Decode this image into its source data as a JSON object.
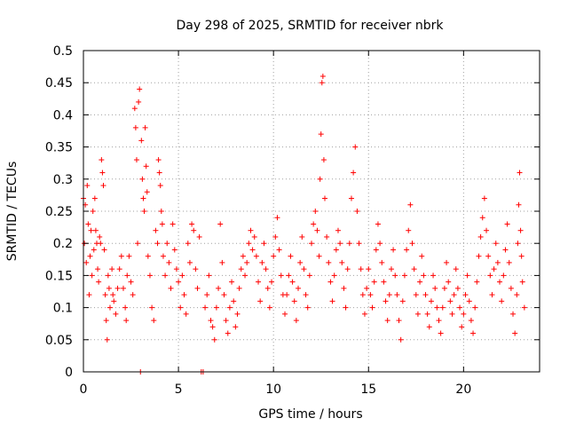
{
  "chart_data": {
    "type": "scatter",
    "title": "Day 298 of 2025, SRMTID for receiver nbrk",
    "xlabel": "GPS time / hours",
    "ylabel": "SRMTID / TECUs",
    "xlim": [
      0,
      24
    ],
    "ylim": [
      0,
      0.5
    ],
    "xticks": [
      0,
      5,
      10,
      15,
      20
    ],
    "xtick_labels": [
      "0",
      "5",
      "10",
      "15",
      "20"
    ],
    "yticks": [
      0,
      0.05,
      0.1,
      0.15,
      0.2,
      0.25,
      0.3,
      0.35,
      0.4,
      0.45,
      0.5
    ],
    "ytick_labels": [
      "0",
      "0.05",
      "0.1",
      "0.15",
      "0.2",
      "0.25",
      "0.3",
      "0.35",
      "0.4",
      "0.45",
      "0.5"
    ],
    "grid": true,
    "marker": "+",
    "color": "#ff0000",
    "series": [
      {
        "name": "SRMTID",
        "points": [
          [
            0.0,
            0.27
          ],
          [
            0.05,
            0.2
          ],
          [
            0.1,
            0.26
          ],
          [
            0.15,
            0.17
          ],
          [
            0.2,
            0.29
          ],
          [
            0.25,
            0.23
          ],
          [
            0.3,
            0.12
          ],
          [
            0.35,
            0.18
          ],
          [
            0.4,
            0.22
          ],
          [
            0.45,
            0.15
          ],
          [
            0.5,
            0.25
          ],
          [
            0.55,
            0.19
          ],
          [
            0.6,
            0.27
          ],
          [
            0.65,
            0.22
          ],
          [
            0.7,
            0.2
          ],
          [
            0.75,
            0.16
          ],
          [
            0.8,
            0.14
          ],
          [
            0.85,
            0.21
          ],
          [
            0.9,
            0.2
          ],
          [
            0.95,
            0.33
          ],
          [
            1.0,
            0.31
          ],
          [
            1.05,
            0.29
          ],
          [
            1.1,
            0.19
          ],
          [
            1.15,
            0.12
          ],
          [
            1.2,
            0.08
          ],
          [
            1.25,
            0.05
          ],
          [
            1.3,
            0.15
          ],
          [
            1.35,
            0.13
          ],
          [
            1.4,
            0.1
          ],
          [
            1.5,
            0.16
          ],
          [
            1.55,
            0.12
          ],
          [
            1.6,
            0.11
          ],
          [
            1.7,
            0.09
          ],
          [
            1.8,
            0.13
          ],
          [
            1.9,
            0.16
          ],
          [
            2.0,
            0.18
          ],
          [
            2.1,
            0.13
          ],
          [
            2.2,
            0.1
          ],
          [
            2.25,
            0.08
          ],
          [
            2.3,
            0.15
          ],
          [
            2.4,
            0.18
          ],
          [
            2.5,
            0.14
          ],
          [
            2.6,
            0.12
          ],
          [
            2.7,
            0.41
          ],
          [
            2.75,
            0.38
          ],
          [
            2.8,
            0.33
          ],
          [
            2.85,
            0.2
          ],
          [
            2.9,
            0.42
          ],
          [
            2.95,
            0.44
          ],
          [
            3.0,
            0.0
          ],
          [
            3.05,
            0.36
          ],
          [
            3.1,
            0.3
          ],
          [
            3.15,
            0.27
          ],
          [
            3.2,
            0.25
          ],
          [
            3.25,
            0.38
          ],
          [
            3.3,
            0.32
          ],
          [
            3.35,
            0.28
          ],
          [
            3.4,
            0.18
          ],
          [
            3.5,
            0.15
          ],
          [
            3.6,
            0.1
          ],
          [
            3.7,
            0.08
          ],
          [
            3.8,
            0.22
          ],
          [
            3.9,
            0.2
          ],
          [
            3.95,
            0.33
          ],
          [
            4.0,
            0.31
          ],
          [
            4.05,
            0.29
          ],
          [
            4.1,
            0.25
          ],
          [
            4.15,
            0.23
          ],
          [
            4.2,
            0.18
          ],
          [
            4.3,
            0.15
          ],
          [
            4.4,
            0.2
          ],
          [
            4.5,
            0.17
          ],
          [
            4.6,
            0.13
          ],
          [
            4.7,
            0.23
          ],
          [
            4.8,
            0.19
          ],
          [
            4.9,
            0.16
          ],
          [
            5.0,
            0.14
          ],
          [
            5.1,
            0.1
          ],
          [
            5.2,
            0.15
          ],
          [
            5.3,
            0.12
          ],
          [
            5.4,
            0.09
          ],
          [
            5.5,
            0.2
          ],
          [
            5.6,
            0.17
          ],
          [
            5.7,
            0.23
          ],
          [
            5.8,
            0.22
          ],
          [
            5.9,
            0.16
          ],
          [
            6.0,
            0.13
          ],
          [
            6.1,
            0.21
          ],
          [
            6.2,
            0.0
          ],
          [
            6.3,
            0.0
          ],
          [
            6.4,
            0.1
          ],
          [
            6.5,
            0.12
          ],
          [
            6.6,
            0.15
          ],
          [
            6.7,
            0.08
          ],
          [
            6.8,
            0.07
          ],
          [
            6.9,
            0.05
          ],
          [
            7.0,
            0.1
          ],
          [
            7.1,
            0.13
          ],
          [
            7.2,
            0.23
          ],
          [
            7.3,
            0.17
          ],
          [
            7.4,
            0.12
          ],
          [
            7.5,
            0.08
          ],
          [
            7.6,
            0.06
          ],
          [
            7.7,
            0.1
          ],
          [
            7.8,
            0.14
          ],
          [
            7.9,
            0.11
          ],
          [
            8.0,
            0.07
          ],
          [
            8.1,
            0.09
          ],
          [
            8.2,
            0.13
          ],
          [
            8.3,
            0.16
          ],
          [
            8.4,
            0.18
          ],
          [
            8.5,
            0.15
          ],
          [
            8.6,
            0.17
          ],
          [
            8.7,
            0.2
          ],
          [
            8.8,
            0.22
          ],
          [
            8.9,
            0.19
          ],
          [
            9.0,
            0.21
          ],
          [
            9.1,
            0.18
          ],
          [
            9.2,
            0.14
          ],
          [
            9.3,
            0.11
          ],
          [
            9.4,
            0.17
          ],
          [
            9.5,
            0.2
          ],
          [
            9.6,
            0.16
          ],
          [
            9.7,
            0.13
          ],
          [
            9.8,
            0.1
          ],
          [
            9.9,
            0.14
          ],
          [
            10.0,
            0.18
          ],
          [
            10.1,
            0.21
          ],
          [
            10.2,
            0.24
          ],
          [
            10.3,
            0.19
          ],
          [
            10.4,
            0.15
          ],
          [
            10.5,
            0.12
          ],
          [
            10.6,
            0.09
          ],
          [
            10.7,
            0.12
          ],
          [
            10.8,
            0.15
          ],
          [
            10.9,
            0.18
          ],
          [
            11.0,
            0.14
          ],
          [
            11.1,
            0.11
          ],
          [
            11.2,
            0.08
          ],
          [
            11.3,
            0.13
          ],
          [
            11.4,
            0.17
          ],
          [
            11.5,
            0.21
          ],
          [
            11.6,
            0.16
          ],
          [
            11.7,
            0.12
          ],
          [
            11.8,
            0.1
          ],
          [
            11.9,
            0.15
          ],
          [
            12.0,
            0.2
          ],
          [
            12.1,
            0.23
          ],
          [
            12.2,
            0.25
          ],
          [
            12.3,
            0.22
          ],
          [
            12.4,
            0.18
          ],
          [
            12.45,
            0.3
          ],
          [
            12.5,
            0.37
          ],
          [
            12.55,
            0.45
          ],
          [
            12.6,
            0.46
          ],
          [
            12.65,
            0.33
          ],
          [
            12.7,
            0.27
          ],
          [
            12.8,
            0.21
          ],
          [
            12.9,
            0.17
          ],
          [
            13.0,
            0.14
          ],
          [
            13.1,
            0.11
          ],
          [
            13.2,
            0.15
          ],
          [
            13.3,
            0.19
          ],
          [
            13.4,
            0.22
          ],
          [
            13.5,
            0.2
          ],
          [
            13.6,
            0.17
          ],
          [
            13.7,
            0.13
          ],
          [
            13.8,
            0.1
          ],
          [
            13.9,
            0.16
          ],
          [
            14.0,
            0.2
          ],
          [
            14.1,
            0.27
          ],
          [
            14.2,
            0.31
          ],
          [
            14.3,
            0.35
          ],
          [
            14.4,
            0.25
          ],
          [
            14.5,
            0.2
          ],
          [
            14.6,
            0.16
          ],
          [
            14.7,
            0.12
          ],
          [
            14.8,
            0.09
          ],
          [
            14.9,
            0.13
          ],
          [
            15.0,
            0.16
          ],
          [
            15.1,
            0.12
          ],
          [
            15.2,
            0.1
          ],
          [
            15.3,
            0.14
          ],
          [
            15.4,
            0.19
          ],
          [
            15.5,
            0.23
          ],
          [
            15.6,
            0.2
          ],
          [
            15.7,
            0.17
          ],
          [
            15.8,
            0.14
          ],
          [
            15.9,
            0.11
          ],
          [
            16.0,
            0.08
          ],
          [
            16.1,
            0.12
          ],
          [
            16.2,
            0.16
          ],
          [
            16.3,
            0.19
          ],
          [
            16.4,
            0.15
          ],
          [
            16.5,
            0.12
          ],
          [
            16.6,
            0.08
          ],
          [
            16.7,
            0.05
          ],
          [
            16.8,
            0.11
          ],
          [
            16.9,
            0.15
          ],
          [
            17.0,
            0.19
          ],
          [
            17.1,
            0.22
          ],
          [
            17.2,
            0.26
          ],
          [
            17.3,
            0.2
          ],
          [
            17.4,
            0.16
          ],
          [
            17.5,
            0.12
          ],
          [
            17.6,
            0.09
          ],
          [
            17.7,
            0.14
          ],
          [
            17.8,
            0.18
          ],
          [
            17.9,
            0.15
          ],
          [
            18.0,
            0.12
          ],
          [
            18.1,
            0.09
          ],
          [
            18.2,
            0.07
          ],
          [
            18.3,
            0.11
          ],
          [
            18.4,
            0.15
          ],
          [
            18.5,
            0.13
          ],
          [
            18.6,
            0.1
          ],
          [
            18.7,
            0.08
          ],
          [
            18.8,
            0.06
          ],
          [
            18.9,
            0.1
          ],
          [
            19.0,
            0.13
          ],
          [
            19.1,
            0.17
          ],
          [
            19.2,
            0.14
          ],
          [
            19.3,
            0.11
          ],
          [
            19.4,
            0.09
          ],
          [
            19.5,
            0.12
          ],
          [
            19.6,
            0.16
          ],
          [
            19.7,
            0.13
          ],
          [
            19.8,
            0.1
          ],
          [
            19.9,
            0.07
          ],
          [
            20.0,
            0.09
          ],
          [
            20.1,
            0.12
          ],
          [
            20.2,
            0.15
          ],
          [
            20.3,
            0.11
          ],
          [
            20.4,
            0.08
          ],
          [
            20.5,
            0.06
          ],
          [
            20.6,
            0.1
          ],
          [
            20.7,
            0.14
          ],
          [
            20.8,
            0.18
          ],
          [
            20.9,
            0.21
          ],
          [
            21.0,
            0.24
          ],
          [
            21.1,
            0.27
          ],
          [
            21.2,
            0.22
          ],
          [
            21.3,
            0.18
          ],
          [
            21.4,
            0.15
          ],
          [
            21.5,
            0.12
          ],
          [
            21.6,
            0.16
          ],
          [
            21.7,
            0.2
          ],
          [
            21.8,
            0.17
          ],
          [
            21.9,
            0.14
          ],
          [
            22.0,
            0.11
          ],
          [
            22.1,
            0.15
          ],
          [
            22.2,
            0.19
          ],
          [
            22.3,
            0.23
          ],
          [
            22.4,
            0.17
          ],
          [
            22.5,
            0.13
          ],
          [
            22.6,
            0.09
          ],
          [
            22.7,
            0.06
          ],
          [
            22.8,
            0.12
          ],
          [
            22.85,
            0.2
          ],
          [
            22.9,
            0.26
          ],
          [
            22.95,
            0.31
          ],
          [
            23.0,
            0.22
          ],
          [
            23.05,
            0.18
          ],
          [
            23.1,
            0.14
          ],
          [
            23.2,
            0.1
          ]
        ]
      }
    ]
  }
}
